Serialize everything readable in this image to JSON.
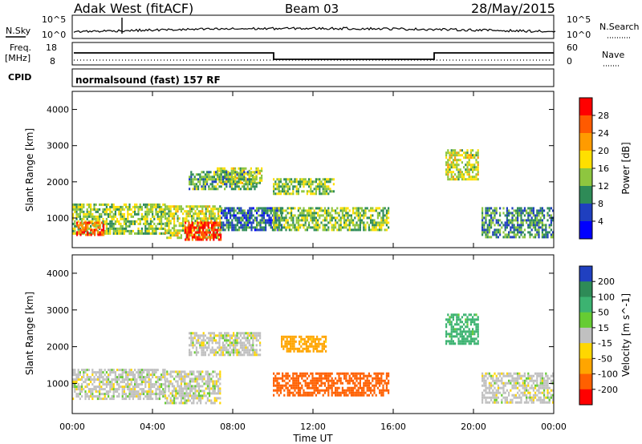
{
  "header": {
    "station": "Adak West (fitACF)",
    "beam": "Beam 03",
    "date": "28/May/2015"
  },
  "panels": {
    "nsky_label": "N.Sky",
    "nsearch_label": "N.Search",
    "nsky_ticks": [
      "10^5",
      "10^0"
    ],
    "nsearch_ticks": [
      "10^5",
      "10^0"
    ],
    "freq_label": "Freq.",
    "freq_unit": "[MHz]",
    "freq_ticks": [
      "18",
      "8"
    ],
    "nave_label": "Nave",
    "nave_ticks": [
      "60",
      "0"
    ],
    "cpid_label": "CPID",
    "cpid_text": "normalsound (fast) 157 RF"
  },
  "colorbars": {
    "power": {
      "label": "Power [dB]",
      "ticks": [
        "28",
        "24",
        "20",
        "16",
        "12",
        "8",
        "4"
      ],
      "colors": [
        "#ff0000",
        "#ff5a00",
        "#ff9b00",
        "#ffdf00",
        "#8ec63f",
        "#2e8b57",
        "#1f3fbf",
        "#0000ff"
      ]
    },
    "velocity": {
      "label": "Velocity [m s^-1]",
      "ticks": [
        "200",
        "100",
        "50",
        "15",
        "-15",
        "-50",
        "-100",
        "-200"
      ],
      "colors": [
        "#2040c0",
        "#2e8b57",
        "#3cb371",
        "#66cc33",
        "#c0c0c0",
        "#ffd700",
        "#ffa500",
        "#ff6000",
        "#ff0000"
      ]
    }
  },
  "chart_data": [
    {
      "type": "heatmap",
      "title": "Power [dB]",
      "xlabel": "",
      "ylabel": "Slant Range [km]",
      "x_ticks": [
        "00:00",
        "04:00",
        "08:00",
        "12:00",
        "16:00",
        "20:00",
        "00:00"
      ],
      "xlim_hours": [
        0,
        24
      ],
      "y_ticks": [
        1000,
        2000,
        3000,
        4000
      ],
      "ylim": [
        180,
        4500
      ],
      "echo_regions": [
        {
          "t": [
            0,
            4.6
          ],
          "range": [
            550,
            1400
          ],
          "power_db": 14
        },
        {
          "t": [
            0.2,
            1.6
          ],
          "range": [
            550,
            900
          ],
          "power_db": 26
        },
        {
          "t": [
            4.6,
            7.4
          ],
          "range": [
            450,
            1350
          ],
          "power_db": 16
        },
        {
          "t": [
            5.6,
            7.4
          ],
          "range": [
            400,
            900
          ],
          "power_db": 28
        },
        {
          "t": [
            7.4,
            10.4
          ],
          "range": [
            700,
            1300
          ],
          "power_db": 8
        },
        {
          "t": [
            10.0,
            15.8
          ],
          "range": [
            700,
            1300
          ],
          "power_db": 14
        },
        {
          "t": [
            7.2,
            9.4
          ],
          "range": [
            2000,
            2400
          ],
          "power_db": 16
        },
        {
          "t": [
            5.8,
            9.2
          ],
          "range": [
            1800,
            2300
          ],
          "power_db": 12
        },
        {
          "t": [
            10.0,
            13.0
          ],
          "range": [
            1700,
            2100
          ],
          "power_db": 14
        },
        {
          "t": [
            18.6,
            20.2
          ],
          "range": [
            2100,
            2900
          ],
          "power_db": 16
        },
        {
          "t": [
            20.4,
            24
          ],
          "range": [
            450,
            1300
          ],
          "power_db": 10
        }
      ]
    },
    {
      "type": "heatmap",
      "title": "Velocity [m s^-1]",
      "xlabel": "Time UT",
      "ylabel": "Slant Range [km]",
      "x_ticks": [
        "00:00",
        "04:00",
        "08:00",
        "12:00",
        "16:00",
        "20:00",
        "00:00"
      ],
      "xlim_hours": [
        0,
        24
      ],
      "y_ticks": [
        1000,
        2000,
        3000,
        4000
      ],
      "ylim": [
        180,
        4500
      ],
      "echo_regions": [
        {
          "t": [
            0,
            4.6
          ],
          "range": [
            550,
            1400
          ],
          "velocity": 0
        },
        {
          "t": [
            4.6,
            7.4
          ],
          "range": [
            450,
            1350
          ],
          "velocity": 0
        },
        {
          "t": [
            10.0,
            15.8
          ],
          "range": [
            700,
            1300
          ],
          "velocity": -100
        },
        {
          "t": [
            10.4,
            12.6
          ],
          "range": [
            1900,
            2300
          ],
          "velocity": -50
        },
        {
          "t": [
            5.8,
            9.4
          ],
          "range": [
            1800,
            2400
          ],
          "velocity": 0
        },
        {
          "t": [
            18.6,
            20.2
          ],
          "range": [
            2100,
            2900
          ],
          "velocity": 50
        },
        {
          "t": [
            20.4,
            24
          ],
          "range": [
            450,
            1300
          ],
          "velocity": 0
        }
      ]
    }
  ]
}
